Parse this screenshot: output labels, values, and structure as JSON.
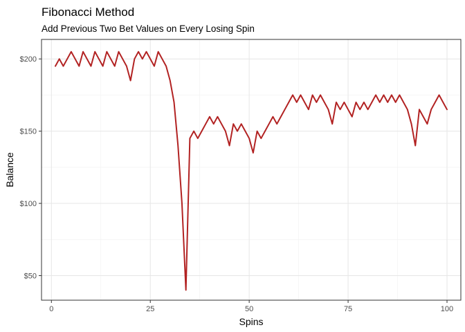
{
  "chart_data": {
    "type": "line",
    "title": "Fibonacci Method",
    "subtitle": "Add Previous Two Bet Values on Every Losing Spin",
    "xlabel": "Spins",
    "ylabel": "Balance",
    "xlim": [
      -2.5,
      103.5
    ],
    "ylim": [
      33,
      213.5
    ],
    "xticks": [
      0,
      25,
      50,
      75,
      100
    ],
    "xtick_labels": [
      "0",
      "25",
      "50",
      "75",
      "100"
    ],
    "yticks": [
      50,
      100,
      150,
      200
    ],
    "ytick_labels": [
      "$50",
      "$100",
      "$150",
      "$200"
    ],
    "grid": true,
    "line_color": "#b22222",
    "series": [
      {
        "x": [
          1,
          2,
          3,
          4,
          5,
          6,
          7,
          8,
          9,
          10,
          11,
          12,
          13,
          14,
          15,
          16,
          17,
          18,
          19,
          20,
          21,
          22,
          23,
          24,
          25,
          26,
          27,
          28,
          29,
          30,
          31,
          32,
          33,
          34,
          35,
          36,
          37,
          38,
          39,
          40,
          41,
          42,
          43,
          44,
          45,
          46,
          47,
          48,
          49,
          50,
          51,
          52,
          53,
          54,
          55,
          56,
          57,
          58,
          59,
          60,
          61,
          62,
          63,
          64,
          65,
          66,
          67,
          68,
          69,
          70,
          71,
          72,
          73,
          74,
          75,
          76,
          77,
          78,
          79,
          80,
          81,
          82,
          83,
          84,
          85,
          86,
          87,
          88,
          89,
          90,
          91,
          92,
          93,
          94,
          95,
          96,
          97,
          98,
          99,
          100
        ],
        "y": [
          195,
          200,
          195,
          200,
          205,
          200,
          195,
          205,
          200,
          195,
          205,
          200,
          195,
          205,
          200,
          195,
          205,
          200,
          195,
          185,
          200,
          205,
          200,
          205,
          200,
          195,
          205,
          200,
          195,
          185,
          170,
          140,
          100,
          40,
          145,
          150,
          145,
          150,
          155,
          160,
          155,
          160,
          155,
          150,
          140,
          155,
          150,
          155,
          150,
          145,
          135,
          150,
          145,
          150,
          155,
          160,
          155,
          160,
          165,
          170,
          175,
          170,
          175,
          170,
          165,
          175,
          170,
          175,
          170,
          165,
          155,
          170,
          165,
          170,
          165,
          160,
          170,
          165,
          170,
          165,
          170,
          175,
          170,
          175,
          170,
          175,
          170,
          175,
          170,
          165,
          155,
          140,
          165,
          160,
          155,
          165,
          170,
          175,
          170,
          165
        ]
      }
    ]
  }
}
